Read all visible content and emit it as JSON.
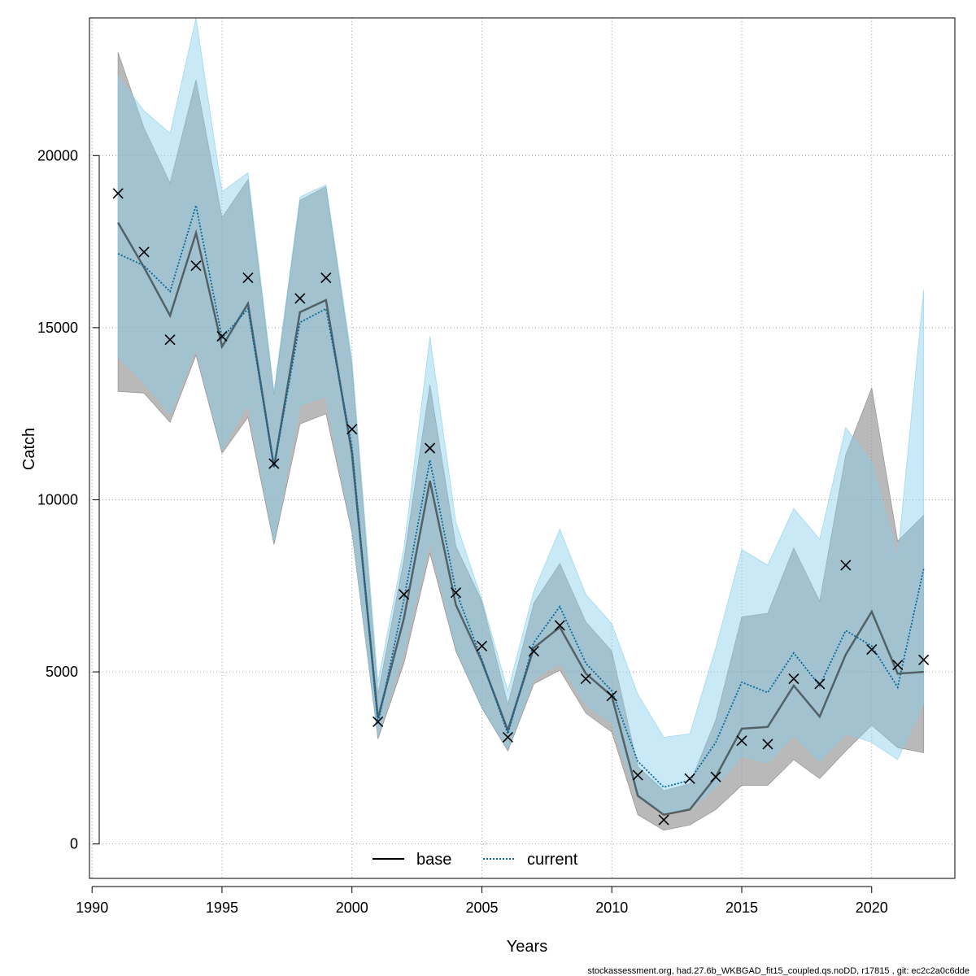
{
  "chart_data": {
    "type": "line",
    "title": "",
    "xlabel": "Years",
    "ylabel": "Catch",
    "xlim": [
      1989.9,
      2023.2
    ],
    "ylim": [
      -1000,
      24000
    ],
    "x_ticks": [
      1990,
      1995,
      2000,
      2005,
      2010,
      2015,
      2020
    ],
    "y_ticks": [
      0,
      5000,
      10000,
      15000,
      20000
    ],
    "x_tick_labels": [
      "1990",
      "1995",
      "2000",
      "2005",
      "2010",
      "2015",
      "2020"
    ],
    "y_tick_labels": [
      "0",
      "5000",
      "10000",
      "15000",
      "20000"
    ],
    "grid": true,
    "legend_position": "bottom",
    "x": [
      1991,
      1992,
      1993,
      1994,
      1995,
      1996,
      1997,
      1998,
      1999,
      2000,
      2001,
      2002,
      2003,
      2004,
      2005,
      2006,
      2007,
      2008,
      2009,
      2010,
      2011,
      2012,
      2013,
      2014,
      2015,
      2016,
      2017,
      2018,
      2019,
      2020,
      2021,
      2022
    ],
    "series": [
      {
        "name": "base",
        "color": "#000000",
        "line_style": "solid",
        "band_color": "#808080",
        "values": [
          18050,
          16750,
          15350,
          17750,
          14450,
          15700,
          10950,
          15450,
          15800,
          11350,
          3650,
          6550,
          10550,
          6950,
          5300,
          3300,
          5700,
          6300,
          4950,
          4300,
          1400,
          850,
          1000,
          1950,
          3350,
          3400,
          4600,
          3700,
          5500,
          6750,
          4950,
          5000
        ],
        "lower": [
          13150,
          13100,
          12250,
          14200,
          11350,
          12400,
          8700,
          12200,
          12500,
          9050,
          3050,
          5250,
          8450,
          5600,
          3950,
          2700,
          4650,
          5050,
          3800,
          3250,
          850,
          400,
          550,
          1000,
          1700,
          1700,
          2450,
          1900,
          2700,
          3450,
          2800,
          2650
        ],
        "upper": [
          23000,
          20800,
          19200,
          22200,
          18200,
          19300,
          13050,
          18700,
          19100,
          13900,
          4350,
          8250,
          13350,
          8650,
          7050,
          4050,
          7000,
          8150,
          6450,
          5600,
          2250,
          1550,
          1750,
          3600,
          6600,
          6700,
          8600,
          7050,
          11300,
          13250,
          8800,
          9550
        ]
      },
      {
        "name": "current",
        "color": "#006a9f",
        "line_style": "dotted",
        "band_color": "#87ceeb",
        "values": [
          17150,
          16800,
          16050,
          18550,
          14700,
          15550,
          10950,
          15150,
          15550,
          11550,
          3500,
          7100,
          11150,
          7350,
          5350,
          3200,
          5850,
          6900,
          5250,
          4450,
          2400,
          1650,
          1850,
          2950,
          4700,
          4400,
          5550,
          4600,
          6200,
          5750,
          4550,
          8000
        ],
        "lower": [
          14150,
          13400,
          12500,
          14400,
          11450,
          12800,
          8800,
          12750,
          13000,
          9150,
          3150,
          5600,
          8800,
          5700,
          4000,
          2750,
          4800,
          5250,
          4050,
          3500,
          1350,
          900,
          1000,
          1650,
          2550,
          2350,
          3150,
          2400,
          3200,
          2950,
          2450,
          4100
        ],
        "upper": [
          22300,
          21300,
          20650,
          24000,
          18950,
          19500,
          13150,
          18800,
          19150,
          14100,
          4700,
          8600,
          14750,
          9350,
          7100,
          4450,
          7350,
          9150,
          7250,
          6400,
          4350,
          3100,
          3200,
          5700,
          8550,
          8100,
          9750,
          8850,
          12100,
          11100,
          8350,
          16100
        ]
      }
    ],
    "observations": {
      "marker": "x",
      "values": [
        18900,
        17200,
        14650,
        16800,
        14750,
        16450,
        11050,
        15850,
        16450,
        12050,
        3550,
        7250,
        11500,
        7300,
        5750,
        3100,
        5600,
        6350,
        4800,
        4300,
        2000,
        700,
        1900,
        1950,
        3000,
        2900,
        4800,
        4650,
        8100,
        5650,
        5200,
        5350
      ]
    },
    "footer": "stockassessment.org, had.27.6b_WKBGAD_fit15_coupled.qs.noDD, r17815 , git: ec2c2a0c6dde"
  }
}
